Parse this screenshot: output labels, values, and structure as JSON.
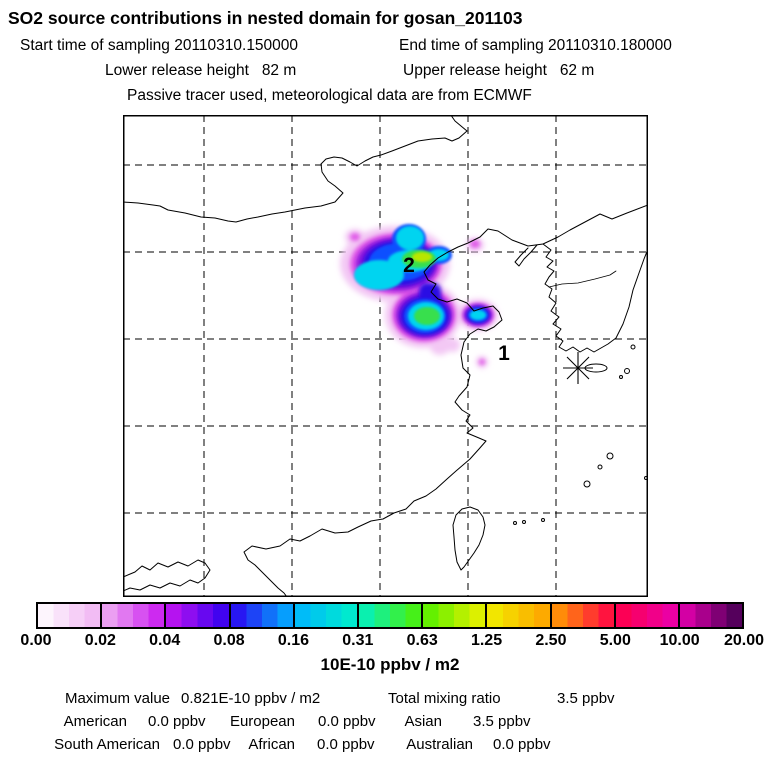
{
  "header": {
    "title": "SO2 source contributions in nested domain for gosan_201103",
    "start_time": "Start time of sampling 20110310.150000",
    "end_time": "End time of sampling 20110310.180000",
    "lower_release": "Lower release height   82 m",
    "upper_release": "Upper release height   62 m",
    "tracer_note": "Passive tracer used, meteorological data are from ECMWF"
  },
  "map": {
    "marker_2": "2",
    "marker_1": "1",
    "receptor_icon": "asterisk-star"
  },
  "colorbar": {
    "ticks": [
      "0.00",
      "0.02",
      "0.04",
      "0.08",
      "0.16",
      "0.31",
      "0.63",
      "1.25",
      "2.50",
      "5.00",
      "10.00",
      "20.00"
    ],
    "boundary_colors": [
      "#ffffff",
      "#f0b2f2",
      "#c816f0",
      "#2e00f0",
      "#00b4ff",
      "#00f0c8",
      "#50f000",
      "#f0f000",
      "#ffa000",
      "#ff0048",
      "#e800b0",
      "#400050"
    ],
    "unit": "10E-10 ppbv / m2"
  },
  "stats": {
    "max_label": "Maximum value",
    "max_value": "0.821E-10 ppbv / m2",
    "total_label": "Total mixing ratio",
    "total_value": "3.5 ppbv",
    "regions": [
      {
        "label": "American",
        "value": "0.0 ppbv"
      },
      {
        "label": "European",
        "value": "0.0 ppbv"
      },
      {
        "label": "Asian",
        "value": "3.5 ppbv"
      },
      {
        "label": "South American",
        "value": "0.0 ppbv"
      },
      {
        "label": "African",
        "value": "0.0 ppbv"
      },
      {
        "label": "Australian",
        "value": "0.0 ppbv"
      }
    ]
  },
  "chart_data": {
    "type": "heatmap",
    "title": "SO2 source contributions in nested domain for gosan_201103",
    "projection": "lat-lon map of eastern China / Korea, dashed graticule, receptor star at Gosan (Jeju)",
    "colorbar_levels": [
      0.0,
      0.02,
      0.04,
      0.08,
      0.16,
      0.31,
      0.63,
      1.25,
      2.5,
      5.0,
      10.0,
      20.0
    ],
    "colorbar_unit": "10E-10 ppbv / m2",
    "sampling_start": "20110310.150000",
    "sampling_end": "20110310.180000",
    "lower_release_height_m": 82,
    "upper_release_height_m": 62,
    "meteorology": "ECMWF",
    "maximum_value": "0.821E-10 ppbv / m2",
    "total_mixing_ratio_ppbv": 3.5,
    "contributions_ppbv": {
      "American": 0.0,
      "European": 0.0,
      "Asian": 3.5,
      "South American": 0.0,
      "African": 0.0,
      "Australian": 0.0
    },
    "plume": "single plume over Bohai/Shandong region, peak cell ~0.8e-10, source markers 1 and 2"
  }
}
